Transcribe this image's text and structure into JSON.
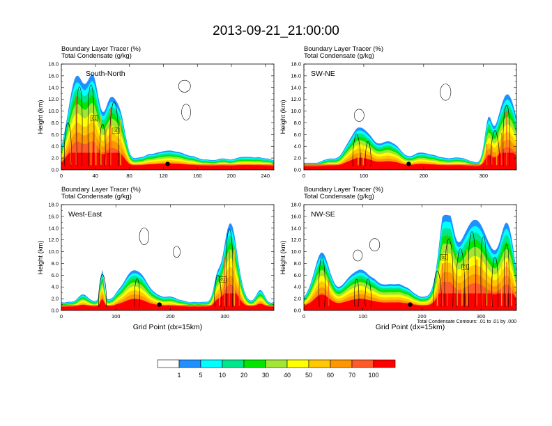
{
  "figure": {
    "title": "2013-09-21_21:00:00",
    "field_label": "Boundary Layer Tracer",
    "field_unit": "(%)",
    "overlay_label": "Total Condensate",
    "overlay_unit": "(g/kg)",
    "ylabel": "Height (km)",
    "xlabel": "Grid Point (dx=15km)",
    "contour_note": "Total Condensate Contours: .01 to .01 by .000",
    "contour_value_label": "0.01"
  },
  "colorbar": {
    "labels": [
      "1",
      "5",
      "10",
      "20",
      "30",
      "40",
      "50",
      "60",
      "70",
      "100"
    ],
    "colors": [
      "#ffffff",
      "#1e90ff",
      "#00ffff",
      "#00e68c",
      "#00e600",
      "#a0e632",
      "#ffff00",
      "#ffc800",
      "#ff9600",
      "#ff5a28",
      "#ff0000"
    ]
  },
  "chart_data": [
    {
      "type": "heatmap",
      "title": "South-North",
      "ylabel": "Height (km)",
      "xlim": [
        0,
        250
      ],
      "ylim": [
        0,
        18
      ],
      "xticks": [
        "0",
        "40",
        "80",
        "120",
        "160",
        "200",
        "240"
      ],
      "yticks": [
        "0.0",
        "2.0",
        "4.0",
        "6.0",
        "8.0",
        "10.0",
        "12.0",
        "14.0",
        "16.0",
        "18.0"
      ],
      "marker_point": [
        125,
        1.0
      ],
      "features": [
        {
          "x_start": 0,
          "x_end": 75,
          "top_km": 16.0,
          "note": "deep convective plume"
        },
        {
          "x_start": 75,
          "x_end": 250,
          "top_km": 3.2,
          "note": "shallow boundary layer"
        }
      ]
    },
    {
      "type": "heatmap",
      "title": "SW-NE",
      "ylabel": "Height (km)",
      "xlim": [
        0,
        355
      ],
      "ylim": [
        0,
        18
      ],
      "xticks": [
        "0",
        "100",
        "200",
        "300"
      ],
      "yticks": [
        "0.0",
        "2.0",
        "4.0",
        "6.0",
        "8.0",
        "10.0",
        "12.0",
        "14.0",
        "16.0",
        "18.0"
      ],
      "marker_point": [
        175,
        1.0
      ],
      "features": [
        {
          "x_start": 60,
          "x_end": 150,
          "top_km": 7.5,
          "note": "elevated boundary layer"
        },
        {
          "x_start": 300,
          "x_end": 355,
          "top_km": 13.0,
          "note": "deep convection"
        }
      ]
    },
    {
      "type": "heatmap",
      "title": "West-East",
      "ylabel": "Height (km)",
      "xlabel": "Grid Point (dx=15km)",
      "xlim": [
        0,
        390
      ],
      "ylim": [
        0,
        18
      ],
      "xticks": [
        "0",
        "100",
        "200",
        "300"
      ],
      "yticks": [
        "0.0",
        "2.0",
        "4.0",
        "6.0",
        "8.0",
        "10.0",
        "12.0",
        "14.0",
        "16.0",
        "18.0"
      ],
      "marker_point": [
        180,
        1.0
      ],
      "features": [
        {
          "x_start": 70,
          "x_end": 180,
          "top_km": 7.0,
          "note": "elevated boundary layer"
        },
        {
          "x_start": 270,
          "x_end": 345,
          "top_km": 15.0,
          "note": "deep convection"
        }
      ]
    },
    {
      "type": "heatmap",
      "title": "NW-SE",
      "ylabel": "Height (km)",
      "xlabel": "Grid Point (dx=15km)",
      "xlim": [
        0,
        360
      ],
      "ylim": [
        0,
        18
      ],
      "xticks": [
        "0",
        "100",
        "200",
        "300"
      ],
      "yticks": [
        "0.0",
        "2.0",
        "4.0",
        "6.0",
        "8.0",
        "10.0",
        "12.0",
        "14.0",
        "16.0",
        "18.0"
      ],
      "marker_point": [
        180,
        1.0
      ],
      "features": [
        {
          "x_start": 0,
          "x_end": 50,
          "top_km": 10.0,
          "note": "convective tower"
        },
        {
          "x_start": 220,
          "x_end": 360,
          "top_km": 16.0,
          "note": "deep convection"
        }
      ]
    }
  ]
}
